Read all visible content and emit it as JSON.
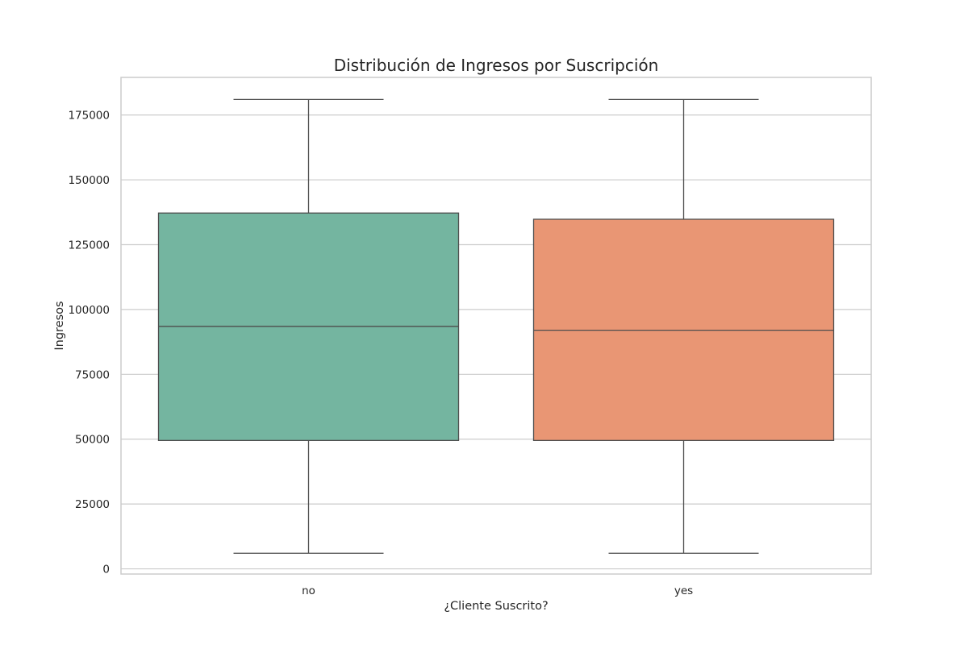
{
  "chart_data": {
    "type": "box",
    "title": "Distribución de Ingresos por Suscripción",
    "xlabel": "¿Cliente Suscrito?",
    "ylabel": "Ingresos",
    "ylim": [
      -2000,
      189500
    ],
    "yticks": [
      0,
      25000,
      50000,
      75000,
      100000,
      125000,
      150000,
      175000
    ],
    "grid": "horizontal",
    "categories": [
      "no",
      "yes"
    ],
    "boxes": [
      {
        "category": "no",
        "whisker_low": 6000,
        "q1": 49500,
        "median": 93500,
        "q3": 137200,
        "whisker_high": 181000,
        "color": "#74b5a0"
      },
      {
        "category": "yes",
        "whisker_low": 6000,
        "q1": 49500,
        "median": 92000,
        "q3": 134800,
        "whisker_high": 181000,
        "color": "#e99674"
      }
    ]
  }
}
